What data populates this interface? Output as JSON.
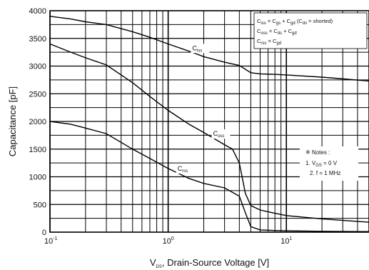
{
  "chart_data": {
    "type": "line",
    "xlabel_main": "V",
    "xlabel_sub": "DS",
    "xlabel_rest": ", Drain-Source Voltage [V]",
    "ylabel": "Capacitance [pF]",
    "xscale": "log",
    "xlim": [
      0.1,
      50
    ],
    "ylim": [
      0,
      4000
    ],
    "grid": true,
    "y_ticks": [
      "0",
      "500",
      "1000",
      "1500",
      "2000",
      "2500",
      "3000",
      "3500",
      "4000"
    ],
    "x_ticks": [
      {
        "base": "10",
        "exp": "-1"
      },
      {
        "base": "10",
        "exp": "0"
      },
      {
        "base": "10",
        "exp": "1"
      }
    ],
    "series": [
      {
        "label": "C",
        "label_sub": "iss",
        "x": [
          0.1,
          0.15,
          0.2,
          0.3,
          0.5,
          0.7,
          1,
          1.5,
          2,
          3,
          4,
          5,
          6,
          8,
          10,
          20,
          50
        ],
        "y": [
          3900,
          3850,
          3800,
          3750,
          3620,
          3520,
          3400,
          3270,
          3170,
          3070,
          3010,
          2880,
          2860,
          2850,
          2840,
          2800,
          2730
        ]
      },
      {
        "label": "C",
        "label_sub": "oss",
        "x": [
          0.1,
          0.15,
          0.2,
          0.3,
          0.5,
          0.7,
          1,
          1.5,
          2,
          3,
          3.5,
          4,
          4.5,
          5,
          6,
          8,
          10,
          20,
          50
        ],
        "y": [
          3400,
          3250,
          3150,
          3020,
          2700,
          2450,
          2200,
          1950,
          1800,
          1580,
          1500,
          1250,
          700,
          480,
          400,
          340,
          300,
          240,
          180
        ]
      },
      {
        "label": "C",
        "label_sub": "rss",
        "x": [
          0.1,
          0.15,
          0.2,
          0.3,
          0.5,
          0.7,
          1,
          1.5,
          2,
          3,
          4,
          4.5,
          5,
          6,
          8,
          10,
          20,
          50
        ],
        "y": [
          2000,
          1950,
          1880,
          1780,
          1500,
          1330,
          1150,
          970,
          880,
          800,
          650,
          350,
          100,
          40,
          30,
          25,
          15,
          10
        ]
      }
    ],
    "legend": {
      "placement": "top-right",
      "lines": [
        {
          "a": "C",
          "a_sub": "iss",
          "b": " = C",
          "b_sub": "gs",
          "c": " + C",
          "c_sub": "gd",
          "d": " (C",
          "d_sub": "ds",
          "e": " = shorted)"
        },
        {
          "a": "C",
          "a_sub": "oss",
          "b": " = C",
          "b_sub": "ds",
          "c": " + C",
          "c_sub": "gd",
          "d": "",
          "d_sub": "",
          "e": ""
        },
        {
          "a": "C",
          "a_sub": "rss",
          "b": " = C",
          "b_sub": "gd",
          "c": "",
          "c_sub": "",
          "d": "",
          "d_sub": "",
          "e": ""
        }
      ]
    },
    "notes": {
      "header": "※ Notes :",
      "line1_pre": "1. V",
      "line1_sub": "GS",
      "line1_post": " = 0 V",
      "line2": "2. f = 1 MHz"
    }
  }
}
